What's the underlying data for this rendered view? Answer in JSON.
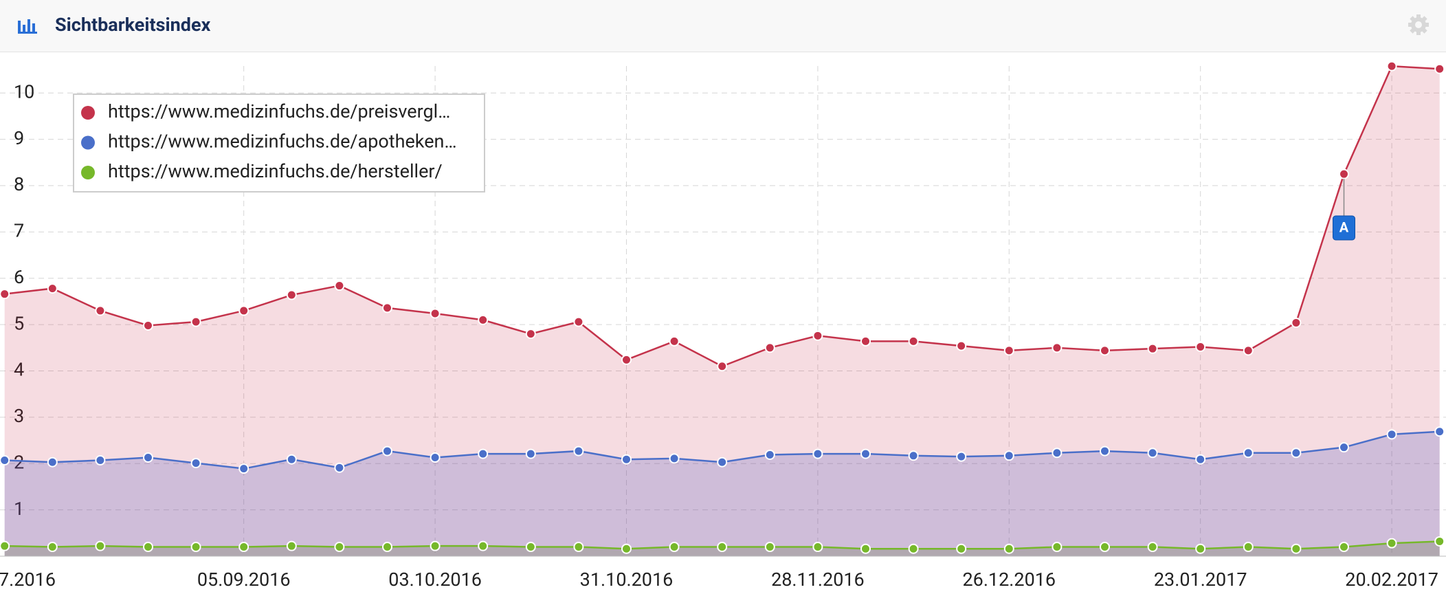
{
  "header": {
    "title": "Sichtbarkeitsindex"
  },
  "chart_data": {
    "type": "area",
    "categories": [
      "7.2016",
      null,
      null,
      null,
      null,
      "05.09.2016",
      null,
      null,
      null,
      "03.10.2016",
      null,
      null,
      null,
      "31.10.2016",
      null,
      null,
      null,
      "28.11.2016",
      null,
      null,
      null,
      "26.12.2016",
      null,
      null,
      null,
      "23.01.2017",
      null,
      null,
      null,
      "20.02.2017",
      null
    ],
    "series": [
      {
        "name": "https://www.medizinfuchs.de/preisvergl…",
        "color": "#c4334b",
        "values": [
          5.66,
          5.78,
          5.3,
          4.98,
          5.06,
          5.3,
          5.64,
          5.84,
          5.36,
          5.24,
          5.1,
          4.8,
          5.06,
          4.24,
          4.64,
          4.1,
          4.5,
          4.76,
          4.64,
          4.64,
          4.54,
          4.44,
          4.5,
          4.44,
          4.48,
          4.52,
          4.44,
          5.04,
          8.25,
          10.58,
          10.52
        ]
      },
      {
        "name": "https://www.medizinfuchs.de/apotheken…",
        "color": "#4a6fc9",
        "values": [
          2.07,
          2.03,
          2.07,
          2.13,
          2.01,
          1.89,
          2.09,
          1.91,
          2.27,
          2.13,
          2.21,
          2.21,
          2.27,
          2.09,
          2.11,
          2.03,
          2.19,
          2.21,
          2.21,
          2.17,
          2.15,
          2.17,
          2.23,
          2.27,
          2.23,
          2.09,
          2.23,
          2.23,
          2.35,
          2.63,
          2.69
        ]
      },
      {
        "name": "https://www.medizinfuchs.de/hersteller/",
        "color": "#76b82a",
        "values": [
          0.22,
          0.2,
          0.22,
          0.2,
          0.2,
          0.2,
          0.22,
          0.2,
          0.2,
          0.22,
          0.22,
          0.2,
          0.2,
          0.16,
          0.2,
          0.2,
          0.2,
          0.2,
          0.16,
          0.16,
          0.16,
          0.16,
          0.2,
          0.2,
          0.2,
          0.16,
          0.2,
          0.16,
          0.2,
          0.28,
          0.32
        ]
      }
    ],
    "annotations": [
      {
        "text": "A"
      }
    ],
    "ylim": [
      0,
      10.88
    ],
    "yticks": [
      1,
      2,
      3,
      4,
      5,
      6,
      7,
      8,
      9,
      10
    ],
    "grid": true
  }
}
